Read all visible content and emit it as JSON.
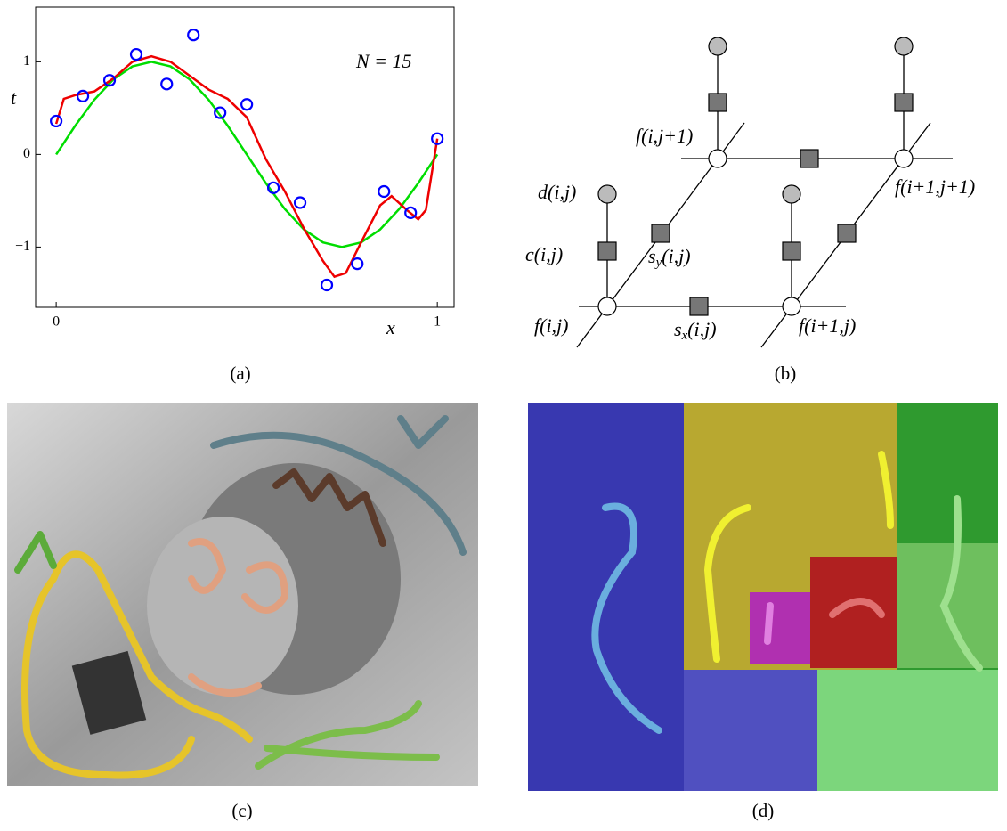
{
  "chart_data": {
    "type": "scatter",
    "xlabel": "x",
    "ylabel": "t",
    "annotation": "N = 15",
    "xlim": [
      -0.054,
      1.044
    ],
    "ylim": [
      -1.65,
      1.59
    ],
    "xticks": [
      0,
      1
    ],
    "yticks": [
      {
        "value": -1,
        "label": "−1"
      },
      0,
      1
    ],
    "series": [
      {
        "type": "scatter",
        "color": "#0000ff",
        "x": [
          0,
          0.07,
          0.14,
          0.21,
          0.29,
          0.36,
          0.43,
          0.5,
          0.57,
          0.64,
          0.71,
          0.79,
          0.86,
          0.93,
          1.0
        ],
        "values": [
          0.36,
          0.63,
          0.8,
          1.08,
          0.76,
          1.29,
          0.45,
          0.54,
          -0.36,
          -0.52,
          -1.41,
          -1.18,
          -0.4,
          -0.63,
          0.17
        ]
      },
      {
        "type": "line",
        "color": "#00dd00",
        "x": [
          0,
          0.05,
          0.1,
          0.15,
          0.2,
          0.25,
          0.3,
          0.35,
          0.4,
          0.45,
          0.5,
          0.55,
          0.6,
          0.65,
          0.7,
          0.75,
          0.8,
          0.85,
          0.9,
          0.95,
          1.0
        ],
        "values": [
          0,
          0.31,
          0.59,
          0.81,
          0.95,
          1.0,
          0.95,
          0.81,
          0.59,
          0.31,
          0,
          -0.31,
          -0.59,
          -0.81,
          -0.95,
          -1.0,
          -0.95,
          -0.81,
          -0.59,
          -0.31,
          0
        ]
      },
      {
        "type": "line",
        "color": "#ee0000",
        "x": [
          0,
          0.02,
          0.05,
          0.1,
          0.15,
          0.2,
          0.25,
          0.3,
          0.35,
          0.4,
          0.45,
          0.5,
          0.55,
          0.6,
          0.65,
          0.7,
          0.73,
          0.76,
          0.8,
          0.85,
          0.88,
          0.92,
          0.95,
          0.97,
          1.0
        ],
        "values": [
          0.33,
          0.6,
          0.64,
          0.68,
          0.82,
          1.0,
          1.06,
          1.0,
          0.85,
          0.7,
          0.6,
          0.4,
          -0.05,
          -0.4,
          -0.8,
          -1.15,
          -1.32,
          -1.28,
          -0.95,
          -0.55,
          -0.45,
          -0.6,
          -0.7,
          -0.6,
          0.17
        ]
      }
    ]
  },
  "diagram": {
    "labels": {
      "f_top_left": "f(i,j+1)",
      "f_top_right": "f(i+1,j+1)",
      "d": "d(i,j)",
      "c": "c(i,j)",
      "f_bottom_left": "f(i,j)",
      "f_bottom_right": "f(i+1,j)"
    },
    "sy": {
      "base": "s",
      "sub": "y",
      "args": "(i,j)"
    },
    "sx": {
      "base": "s",
      "sub": "x",
      "args": "(i,j)"
    }
  },
  "captions": [
    "(a)",
    "(b)",
    "(c)",
    "(d)"
  ]
}
